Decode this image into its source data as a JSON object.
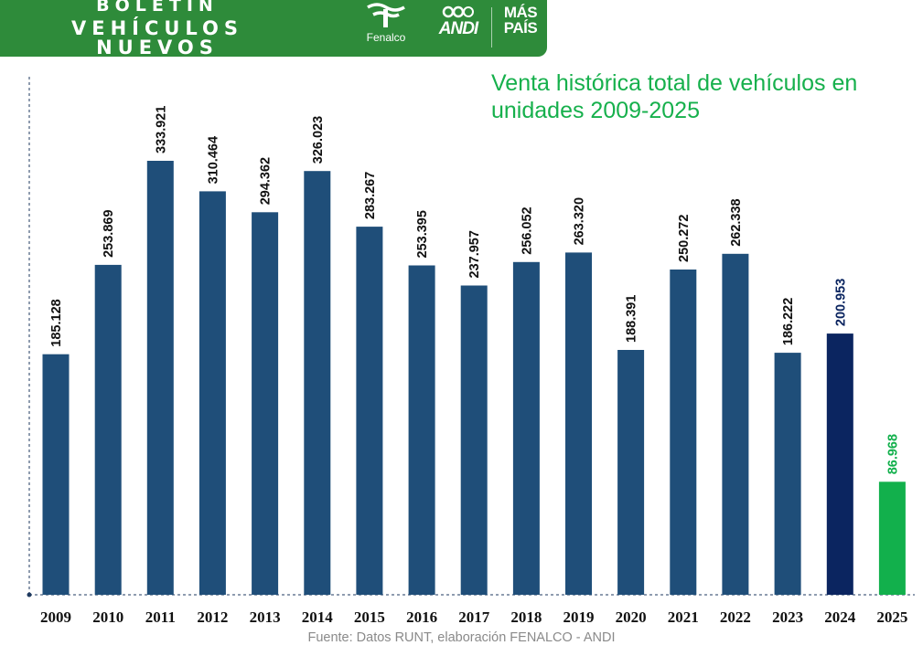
{
  "header": {
    "line1": "BOLETÍN",
    "line2": "VEHÍCULOS NUEVOS",
    "logos": {
      "fenalco": "Fenalco",
      "andi": "ANDI",
      "mas_pais_line1": "MÁS",
      "mas_pais_line2": "PAÍS"
    }
  },
  "chart_data": {
    "type": "bar",
    "title": "Venta histórica total de vehículos en unidades 2009-2025",
    "categories": [
      "2009",
      "2010",
      "2011",
      "2012",
      "2013",
      "2014",
      "2015",
      "2016",
      "2017",
      "2018",
      "2019",
      "2020",
      "2021",
      "2022",
      "2023",
      "2024",
      "2025"
    ],
    "values": [
      185128,
      253869,
      333921,
      310464,
      294362,
      326023,
      283267,
      253395,
      237957,
      256052,
      263320,
      188391,
      250272,
      262338,
      186222,
      200953,
      86968
    ],
    "value_labels": [
      "185.128",
      "253.869",
      "333.921",
      "310.464",
      "294.362",
      "326.023",
      "283.267",
      "253.395",
      "237.957",
      "256.052",
      "263.320",
      "188.391",
      "250.272",
      "262.338",
      "186.222",
      "200.953",
      "86.968"
    ],
    "ylim": [
      0,
      350000
    ],
    "grid": false,
    "legend": "none",
    "colors": {
      "default": "#1f4e79",
      "2024": "#0b2560",
      "2025": "#12b04c",
      "label_default": "#111111",
      "label_2024": "#0b2560",
      "label_2025": "#12b04c"
    }
  },
  "source": "Fuente: Datos RUNT, elaboración FENALCO - ANDI",
  "colors": {
    "banner": "#2e8b3a",
    "title": "#16b04c"
  }
}
